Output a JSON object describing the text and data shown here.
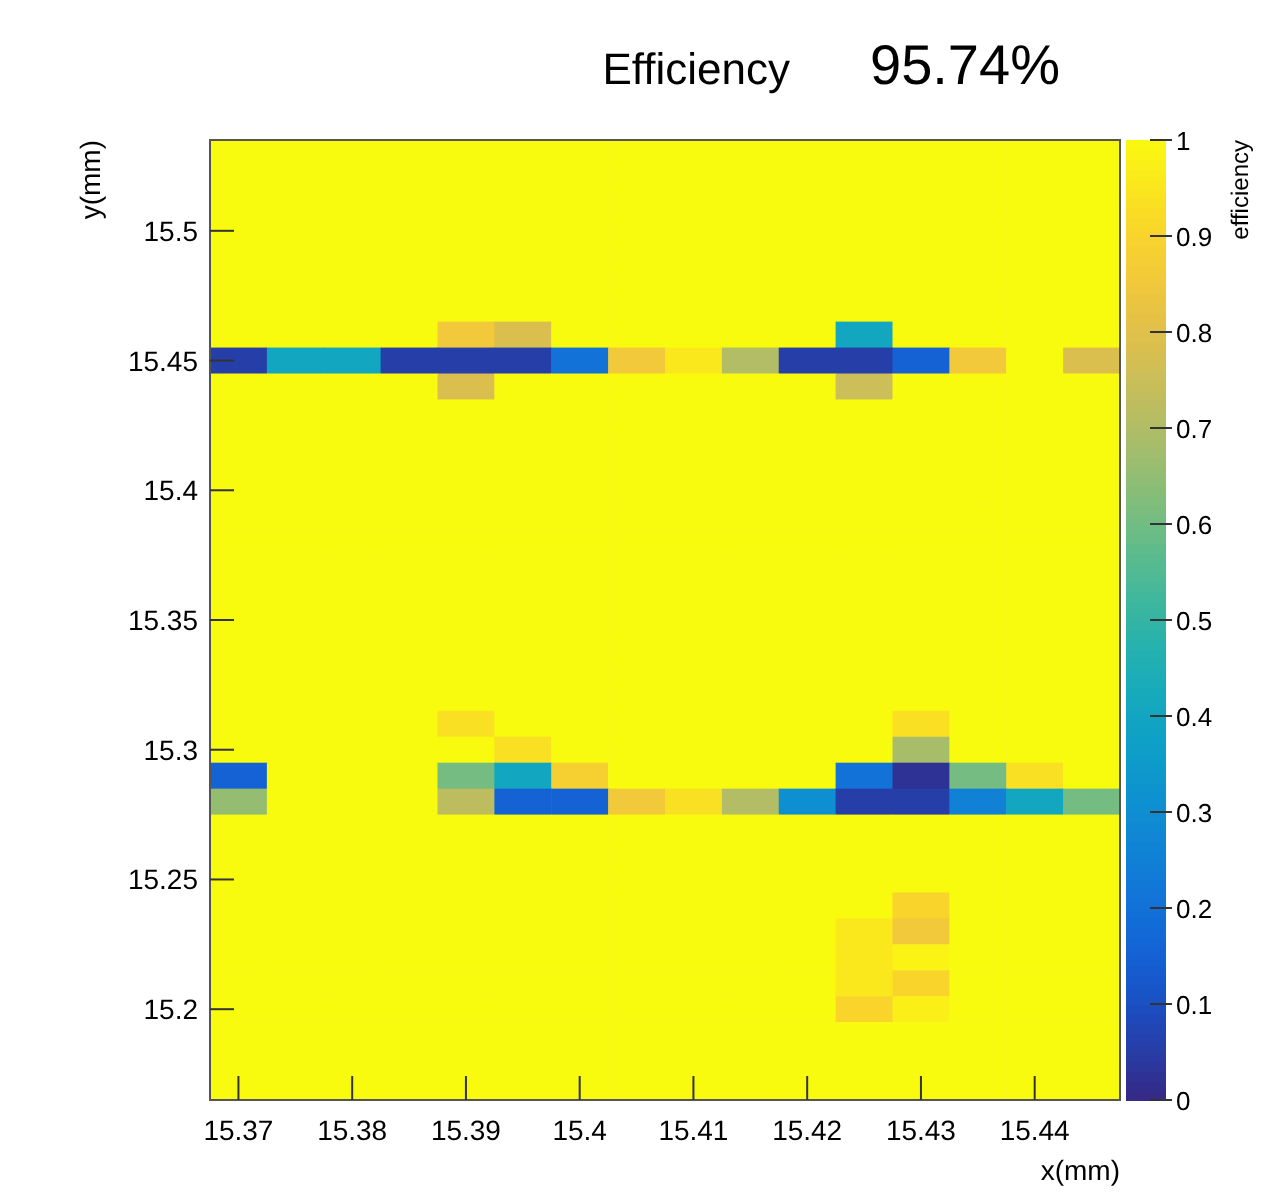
{
  "chart_data": {
    "type": "heatmap",
    "title": "Efficiency",
    "subtitle": "95.74%",
    "xlabel": "x(mm)",
    "ylabel": "y(mm)",
    "clabel": "efficiency",
    "x": [
      15.37,
      15.375,
      15.38,
      15.385,
      15.39,
      15.395,
      15.4,
      15.405,
      15.41,
      15.415,
      15.42,
      15.425,
      15.43,
      15.435,
      15.44,
      15.445
    ],
    "y": [
      15.53,
      15.52,
      15.51,
      15.5,
      15.49,
      15.48,
      15.47,
      15.46,
      15.45,
      15.44,
      15.43,
      15.42,
      15.41,
      15.4,
      15.39,
      15.38,
      15.37,
      15.36,
      15.35,
      15.34,
      15.33,
      15.32,
      15.31,
      15.3,
      15.29,
      15.28,
      15.27,
      15.26,
      15.25,
      15.24,
      15.23,
      15.22,
      15.21,
      15.2,
      15.19,
      15.18,
      15.17
    ],
    "xlim": [
      15.3675,
      15.4475
    ],
    "xticks": [
      15.37,
      15.38,
      15.39,
      15.4,
      15.41,
      15.42,
      15.43,
      15.44
    ],
    "ylim": [
      15.165,
      15.535
    ],
    "yticks": [
      15.2,
      15.25,
      15.3,
      15.35,
      15.4,
      15.45,
      15.5
    ],
    "clim": [
      0,
      1
    ],
    "cticks": [
      0,
      0.1,
      0.2,
      0.3,
      0.4,
      0.5,
      0.6,
      0.7,
      0.8,
      0.9,
      1
    ],
    "cells": [
      [
        1,
        1,
        1,
        1,
        1,
        1,
        1,
        1,
        1,
        1,
        1,
        1,
        1,
        1,
        1,
        1
      ],
      [
        1,
        1,
        1,
        1,
        1,
        1,
        1,
        1,
        1,
        1,
        1,
        1,
        1,
        1,
        1,
        1
      ],
      [
        1,
        1,
        1,
        1,
        1,
        1,
        1,
        1,
        1,
        1,
        1,
        1,
        1,
        1,
        1,
        1
      ],
      [
        1,
        1,
        1,
        1,
        1,
        1,
        1,
        1,
        1,
        1,
        1,
        1,
        1,
        1,
        1,
        1
      ],
      [
        1,
        1,
        1,
        1,
        1,
        1,
        1,
        1,
        1,
        1,
        1,
        1,
        1,
        1,
        1,
        1
      ],
      [
        1,
        1,
        1,
        1,
        1,
        1,
        1,
        1,
        1,
        1,
        1,
        1,
        1,
        1,
        1,
        1
      ],
      [
        1,
        1,
        1,
        1,
        1,
        1,
        1,
        1,
        1,
        1,
        1,
        1,
        1,
        1,
        1,
        1
      ],
      [
        1,
        1,
        1,
        1,
        0.85,
        0.78,
        1,
        1,
        1,
        1,
        1,
        0.4,
        1,
        1,
        1,
        1
      ],
      [
        0.05,
        0.4,
        0.4,
        0.05,
        0.05,
        0.05,
        0.2,
        0.85,
        0.95,
        0.7,
        0.05,
        0.05,
        0.15,
        0.85,
        1,
        0.78
      ],
      [
        1,
        1,
        1,
        1,
        0.78,
        1,
        1,
        1,
        1,
        1,
        1,
        0.75,
        1,
        1,
        1,
        1
      ],
      [
        1,
        1,
        1,
        1,
        1,
        1,
        1,
        1,
        1,
        1,
        1,
        1,
        1,
        1,
        1,
        1
      ],
      [
        1,
        1,
        1,
        1,
        1,
        1,
        1,
        1,
        1,
        1,
        1,
        1,
        1,
        1,
        1,
        1
      ],
      [
        1,
        1,
        1,
        1,
        1,
        1,
        1,
        1,
        1,
        1,
        1,
        1,
        1,
        1,
        1,
        1
      ],
      [
        1,
        1,
        1,
        1,
        1,
        1,
        1,
        1,
        1,
        1,
        1,
        1,
        1,
        1,
        1,
        1
      ],
      [
        1,
        1,
        1,
        1,
        1,
        1,
        1,
        1,
        1,
        1,
        1,
        1,
        1,
        1,
        1,
        1
      ],
      [
        1,
        1,
        1,
        1,
        1,
        1,
        1,
        1,
        1,
        1,
        1,
        1,
        1,
        1,
        1,
        1
      ],
      [
        1,
        1,
        1,
        1,
        1,
        1,
        1,
        1,
        1,
        1,
        1,
        1,
        1,
        1,
        1,
        1
      ],
      [
        1,
        1,
        1,
        1,
        1,
        1,
        1,
        1,
        1,
        1,
        1,
        1,
        1,
        1,
        1,
        1
      ],
      [
        1,
        1,
        1,
        1,
        1,
        1,
        1,
        1,
        1,
        1,
        1,
        1,
        1,
        1,
        1,
        1
      ],
      [
        1,
        1,
        1,
        1,
        1,
        1,
        1,
        1,
        1,
        1,
        1,
        1,
        1,
        1,
        1,
        1
      ],
      [
        1,
        1,
        1,
        1,
        1,
        1,
        1,
        1,
        1,
        1,
        1,
        1,
        1,
        1,
        1,
        1
      ],
      [
        1,
        1,
        1,
        1,
        1,
        1,
        1,
        1,
        1,
        1,
        1,
        1,
        1,
        1,
        1,
        1
      ],
      [
        1,
        1,
        1,
        1,
        0.93,
        1,
        1,
        1,
        1,
        1,
        1,
        1,
        0.93,
        1,
        1,
        1
      ],
      [
        1,
        1,
        1,
        1,
        1,
        0.93,
        1,
        1,
        1,
        1,
        1,
        1,
        0.68,
        1,
        1,
        1
      ],
      [
        0.15,
        1,
        1,
        1,
        0.6,
        0.4,
        0.88,
        1,
        1,
        1,
        1,
        0.2,
        0.02,
        0.6,
        0.93,
        1
      ],
      [
        0.65,
        1,
        1,
        1,
        0.72,
        0.15,
        0.15,
        0.85,
        0.93,
        0.7,
        0.3,
        0.05,
        0.05,
        0.25,
        0.4,
        0.6
      ],
      [
        1,
        1,
        1,
        1,
        1,
        1,
        1,
        1,
        1,
        1,
        1,
        1,
        1,
        1,
        1,
        1
      ],
      [
        1,
        1,
        1,
        1,
        1,
        1,
        1,
        1,
        1,
        1,
        1,
        1,
        1,
        1,
        1,
        1
      ],
      [
        1,
        1,
        1,
        1,
        1,
        1,
        1,
        1,
        1,
        1,
        1,
        1,
        1,
        1,
        1,
        1
      ],
      [
        1,
        1,
        1,
        1,
        1,
        1,
        1,
        1,
        1,
        1,
        1,
        1,
        0.9,
        1,
        1,
        1
      ],
      [
        1,
        1,
        1,
        1,
        1,
        1,
        1,
        1,
        1,
        1,
        1,
        0.95,
        0.85,
        1,
        1,
        1
      ],
      [
        1,
        1,
        1,
        1,
        1,
        1,
        1,
        1,
        1,
        1,
        1,
        0.95,
        0.98,
        1,
        1,
        1
      ],
      [
        1,
        1,
        1,
        1,
        1,
        1,
        1,
        1,
        1,
        1,
        1,
        0.95,
        0.9,
        1,
        1,
        1
      ],
      [
        1,
        1,
        1,
        1,
        1,
        1,
        1,
        1,
        1,
        1,
        1,
        0.9,
        0.97,
        1,
        1,
        1
      ],
      [
        1,
        1,
        1,
        1,
        1,
        1,
        1,
        1,
        1,
        1,
        1,
        1,
        1,
        1,
        1,
        1
      ],
      [
        1,
        1,
        1,
        1,
        1,
        1,
        1,
        1,
        1,
        1,
        1,
        1,
        1,
        1,
        1,
        1
      ],
      [
        1,
        1,
        1,
        1,
        1,
        1,
        1,
        1,
        1,
        1,
        1,
        1,
        1,
        1,
        1,
        1
      ]
    ]
  }
}
